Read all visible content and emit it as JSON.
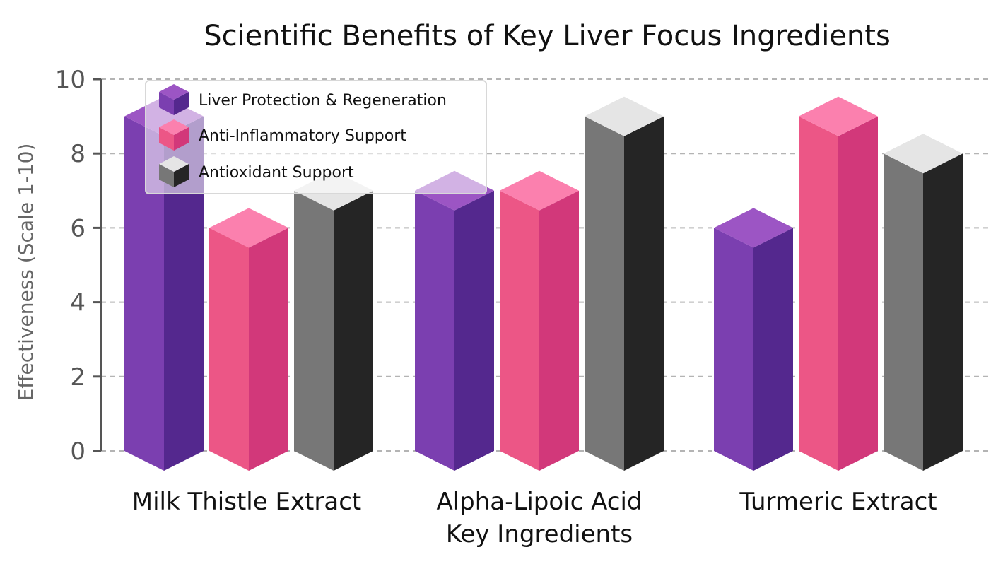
{
  "chart_data": {
    "type": "bar",
    "title": "Scientific Benefits of Key Liver Focus Ingredients",
    "xlabel": "",
    "ylabel": "Effectiveness (Scale 1-10)",
    "ylim": [
      0,
      10
    ],
    "yticks": [
      0,
      2,
      4,
      6,
      8,
      10
    ],
    "grid": true,
    "legend_position": "top-left",
    "categories": [
      [
        "Milk Thistle Extract"
      ],
      [
        "Alpha-Lipoic Acid",
        "Key Ingredients"
      ],
      [
        "Turmeric Extract"
      ]
    ],
    "series": [
      {
        "name": "Liver Protection & Regeneration",
        "values": [
          9,
          7,
          6
        ],
        "colors": {
          "front": "#7b3fb0",
          "side": "#54288e",
          "top": "#9c55c4"
        }
      },
      {
        "name": "Anti-Inflammatory Support",
        "values": [
          6,
          7,
          9
        ],
        "colors": {
          "front": "#ec5686",
          "side": "#d2387a",
          "top": "#fb80ae"
        }
      },
      {
        "name": "Antioxidant Support",
        "values": [
          7,
          9,
          8
        ],
        "colors": {
          "front": "#777777",
          "side": "#252525",
          "top": "#e5e5e5"
        }
      }
    ]
  }
}
